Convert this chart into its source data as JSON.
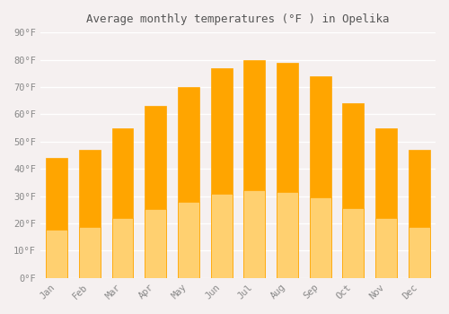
{
  "title": "Average monthly temperatures (°F ) in Opelika",
  "months": [
    "Jan",
    "Feb",
    "Mar",
    "Apr",
    "May",
    "Jun",
    "Jul",
    "Aug",
    "Sep",
    "Oct",
    "Nov",
    "Dec"
  ],
  "values": [
    44,
    47,
    55,
    63,
    70,
    77,
    80,
    79,
    74,
    64,
    55,
    47
  ],
  "bar_color_top": "#FFA500",
  "bar_color_bottom": "#FFD070",
  "ylim": [
    0,
    90
  ],
  "yticks": [
    0,
    10,
    20,
    30,
    40,
    50,
    60,
    70,
    80,
    90
  ],
  "ytick_labels": [
    "0°F",
    "10°F",
    "20°F",
    "30°F",
    "40°F",
    "50°F",
    "60°F",
    "70°F",
    "80°F",
    "90°F"
  ],
  "bg_color": "#f5f0f0",
  "grid_color": "#ffffff",
  "bar_edge_color": "#e8a000",
  "font_color": "#888888",
  "title_font_color": "#555555",
  "font_family": "monospace"
}
